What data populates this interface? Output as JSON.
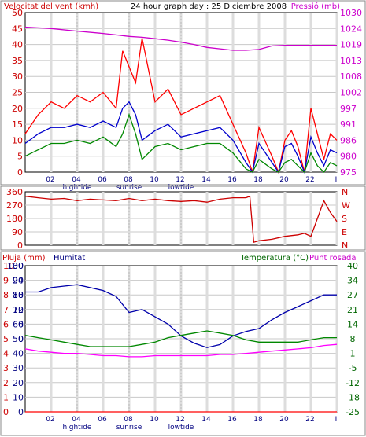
{
  "header": {
    "left_label": "Velocitat del vent (kmh)",
    "center_label": "24 hour graph day : 25 Diciembre 2008",
    "right_label": "Pressió (mb)"
  },
  "colors": {
    "wind_avg": "#0000cc",
    "wind_gust": "#ff0000",
    "wind_min": "#008800",
    "pressure": "#cc00cc",
    "direction": "#cc0000",
    "humidity": "#0000aa",
    "temperature": "#008800",
    "dewpoint": "#ff00ff",
    "rain": "#ff0000",
    "grid": "#c8c8c8",
    "vline": "#dddddd",
    "axis_text_red": "#cc0000",
    "axis_text_magenta": "#cc00cc",
    "axis_text_blue": "#000080",
    "axis_text_green": "#006600",
    "tick_text": "#000080"
  },
  "x_axis": {
    "tick_labels": [
      "02",
      "04",
      "06",
      "08",
      "10",
      "12",
      "14",
      "16",
      "18",
      "20",
      "22",
      "I"
    ],
    "tick_hours": [
      2,
      4,
      6,
      8,
      10,
      12,
      14,
      16,
      18,
      20,
      22,
      24
    ],
    "events": [
      {
        "label": "hightide",
        "hour": 4
      },
      {
        "label": "sunrise",
        "hour": 8
      },
      {
        "label": "lowtide",
        "hour": 12
      }
    ]
  },
  "panel_wind": {
    "wind_ticks": [
      "50",
      "45",
      "40",
      "35",
      "30",
      "25",
      "20",
      "15",
      "10",
      "5",
      "0"
    ],
    "pressure_ticks": [
      "1030",
      "1024",
      "1019",
      "1013",
      "1008",
      "1002",
      "997",
      "991",
      "986",
      "980",
      "975"
    ]
  },
  "panel_direction": {
    "degree_ticks": [
      "360",
      "270",
      "180",
      "90",
      "0"
    ],
    "compass_ticks": [
      "N",
      "W",
      "S",
      "E",
      "N"
    ]
  },
  "panel_climate": {
    "left_label_1": "Pluja (mm)",
    "left_label_2": "Humitat",
    "right_label_1": "Temperatura (°C)",
    "right_label_2": "Punt rosada",
    "rain_ticks": [
      "10",
      "9",
      "8",
      "7",
      "6",
      "5",
      "4",
      "3",
      "2",
      "1",
      "0"
    ],
    "humidity_ticks": [
      "100",
      "90",
      "80",
      "70",
      "60",
      "50",
      "40",
      "30",
      "20",
      "10",
      "0"
    ],
    "temp_left_ticks": [
      "30",
      "24",
      "18",
      "12",
      "6",
      "0"
    ],
    "temp_right_ticks": [
      "40",
      "34",
      "27",
      "21",
      "14",
      "8",
      "1",
      "-5",
      "-12",
      "-18",
      "-25"
    ]
  },
  "chart_data": [
    {
      "type": "line",
      "title": "24 hour graph day : 25 Diciembre 2008",
      "xlabel": "",
      "ylabel": "Velocitat del vent (kmh)",
      "ylim": [
        0,
        50
      ],
      "y2label": "Pressió (mb)",
      "y2lim": [
        975,
        1030
      ],
      "grid": true,
      "series": [
        {
          "axis": "y2",
          "x": [
            0,
            2,
            4,
            6,
            7,
            8,
            9,
            10,
            11,
            12,
            13,
            14,
            15,
            16,
            17,
            18,
            19,
            20,
            21,
            22,
            23,
            24
          ],
          "values": [
            1025,
            1024.5,
            1023.6,
            1022.8,
            1022.3,
            1021.8,
            1021.5,
            1021,
            1020.5,
            1019.8,
            1019,
            1018,
            1017.5,
            1017,
            1017,
            1017.3,
            1018.5,
            1018.7,
            1018.7,
            1018.7,
            1018.7,
            1018.7
          ]
        },
        {
          "axis": "y",
          "x": [
            0,
            1,
            2,
            3,
            4,
            5,
            6,
            7,
            7.5,
            8,
            8.5,
            9,
            10,
            11,
            12,
            13,
            14,
            15,
            16,
            17,
            17.5,
            18,
            19,
            19.5,
            20,
            20.5,
            21,
            21.5,
            22,
            22.5,
            23,
            23.5,
            24
          ],
          "values": [
            12,
            18,
            22,
            20,
            24,
            22,
            25,
            20,
            38,
            33,
            28,
            42,
            22,
            26,
            18,
            20,
            22,
            24,
            15,
            6,
            0,
            14,
            5,
            0,
            10,
            13,
            8,
            0,
            20,
            12,
            4,
            12,
            10
          ]
        },
        {
          "axis": "y",
          "x": [
            0,
            1,
            2,
            3,
            4,
            5,
            6,
            7,
            7.5,
            8,
            8.5,
            9,
            10,
            11,
            12,
            13,
            14,
            15,
            16,
            17,
            17.5,
            18,
            19,
            19.5,
            20,
            20.5,
            21,
            21.5,
            22,
            22.5,
            23,
            23.5,
            24
          ],
          "values": [
            9,
            12,
            14,
            14,
            15,
            14,
            16,
            14,
            20,
            22,
            18,
            10,
            13,
            15,
            11,
            12,
            13,
            14,
            10,
            3,
            0,
            9,
            3,
            0,
            8,
            9,
            5,
            0,
            11,
            6,
            2,
            7,
            6
          ]
        },
        {
          "axis": "y",
          "x": [
            0,
            1,
            2,
            3,
            4,
            5,
            6,
            7,
            7.5,
            8,
            8.5,
            9,
            10,
            11,
            12,
            13,
            14,
            15,
            16,
            17,
            17.5,
            18,
            19,
            19.5,
            20,
            20.5,
            21,
            21.5,
            22,
            22.5,
            23,
            23.5,
            24
          ],
          "values": [
            5,
            7,
            9,
            9,
            10,
            9,
            11,
            8,
            12,
            18,
            12,
            4,
            8,
            9,
            7,
            8,
            9,
            9,
            6,
            1,
            0,
            4,
            1,
            0,
            3,
            4,
            2,
            0,
            6,
            2,
            0,
            3,
            2
          ]
        }
      ]
    },
    {
      "type": "line",
      "title": "",
      "xlabel": "",
      "ylabel": "",
      "ylim": [
        0,
        360
      ],
      "series": [
        {
          "x": [
            0,
            1,
            2,
            3,
            4,
            5,
            6,
            7,
            8,
            9,
            10,
            11,
            12,
            13,
            14,
            15,
            16,
            17,
            17.3,
            17.6,
            18,
            19,
            20,
            21,
            21.5,
            22,
            22.5,
            23,
            23.5,
            24
          ],
          "values": [
            330,
            320,
            310,
            315,
            300,
            310,
            305,
            300,
            315,
            300,
            310,
            300,
            295,
            300,
            290,
            310,
            320,
            320,
            330,
            20,
            30,
            40,
            60,
            70,
            80,
            60,
            180,
            300,
            220,
            160
          ]
        }
      ]
    },
    {
      "type": "line",
      "title": "",
      "xlabel": "",
      "ylabel": "Humitat",
      "ylim": [
        0,
        100
      ],
      "y2label": "Temperatura (°C)",
      "y2lim": [
        -25,
        40
      ],
      "grid": true,
      "series": [
        {
          "axis": "y",
          "x": [
            0,
            1,
            2,
            3,
            4,
            5,
            6,
            7,
            8,
            9,
            10,
            11,
            12,
            13,
            14,
            15,
            16,
            17,
            18,
            19,
            20,
            21,
            22,
            23,
            24
          ],
          "values": [
            82,
            82,
            85,
            86,
            87,
            85,
            83,
            79,
            68,
            70,
            65,
            60,
            52,
            47,
            44,
            46,
            52,
            55,
            57,
            63,
            68,
            72,
            76,
            80,
            80
          ]
        },
        {
          "axis": "y2",
          "x": [
            0,
            1,
            2,
            3,
            4,
            5,
            6,
            7,
            8,
            9,
            10,
            11,
            12,
            13,
            14,
            15,
            16,
            17,
            18,
            19,
            20,
            21,
            22,
            23,
            24
          ],
          "values": [
            9,
            8,
            7,
            6,
            5,
            4,
            4,
            4,
            4,
            5,
            6,
            8,
            9,
            10,
            11,
            10,
            9,
            7,
            6,
            6,
            6,
            6,
            7,
            8,
            8
          ]
        },
        {
          "axis": "y2",
          "x": [
            0,
            1,
            2,
            3,
            4,
            5,
            6,
            7,
            8,
            9,
            10,
            11,
            12,
            13,
            14,
            15,
            16,
            17,
            18,
            19,
            20,
            21,
            22,
            23,
            24
          ],
          "values": [
            3,
            2,
            1.5,
            1,
            1,
            0.5,
            0,
            0,
            -0.5,
            -0.5,
            0,
            0,
            0,
            0,
            0,
            0.5,
            0.5,
            1,
            1.5,
            2,
            2.5,
            3,
            3.5,
            4.5,
            5
          ]
        },
        {
          "axis": "rain",
          "x": [
            0,
            24
          ],
          "values": [
            0,
            0
          ]
        }
      ]
    }
  ]
}
